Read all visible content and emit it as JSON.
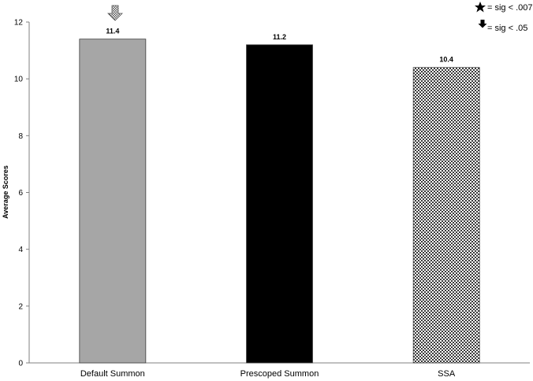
{
  "chart_data": {
    "type": "bar",
    "categories": [
      "Default Summon",
      "Prescoped Summon",
      "SSA"
    ],
    "values": [
      11.4,
      11.2,
      10.4
    ],
    "data_labels": [
      "11.4",
      "11.2",
      "10.4"
    ],
    "title": "",
    "xlabel": "",
    "ylabel": "Average Scores",
    "ylim": [
      0,
      12
    ],
    "yticks": [
      0,
      2,
      4,
      6,
      8,
      10,
      12
    ],
    "grid": false,
    "bar_styles": [
      "gray",
      "black",
      "checker"
    ],
    "colors": {
      "gray": "#a6a6a6",
      "black": "#000000",
      "checker_dark": "#3a3a3a",
      "checker_light": "#ffffff",
      "axis": "#808080"
    },
    "annotations": [
      {
        "category": "Default Summon",
        "marker": "down-arrow-icon"
      }
    ],
    "legend": {
      "position": "top-right",
      "items": [
        {
          "icon": "star-icon",
          "text": "= sig < .007"
        },
        {
          "icon": "down-arrow-icon",
          "text": "= sig < .05"
        }
      ]
    }
  }
}
